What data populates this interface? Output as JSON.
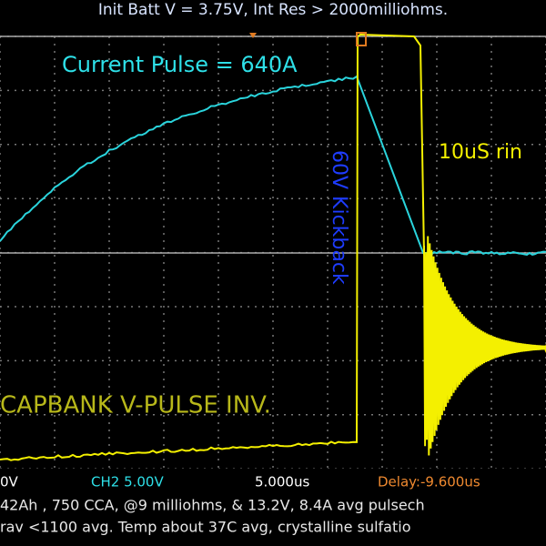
{
  "header": {
    "title": "Init Batt V = 3.75V, Int Res > 2000milliohms."
  },
  "annotations": {
    "current_pulse": "Current Pulse = 640A",
    "ringing": "10uS rin",
    "kickback": "60V Kickback",
    "capbank": "CAPBANK V-PULSE INV."
  },
  "status_bar": {
    "ch1": "0V",
    "ch2": "CH2 5.00V",
    "timebase": "5.000us",
    "delay": "Delay:-9.600us"
  },
  "notes": [
    "42Ah , 750 CCA, @9 milliohms, & 13.2V, 8.4A avg pulsech",
    "rav <1100 avg. Temp about 37C avg, crystalline sulfatio"
  ]
}
